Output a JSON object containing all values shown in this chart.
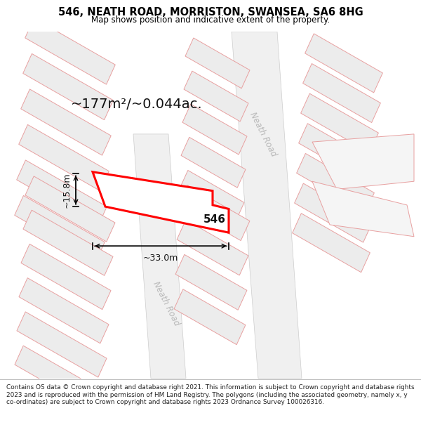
{
  "title": "546, NEATH ROAD, MORRISTON, SWANSEA, SA6 8HG",
  "subtitle": "Map shows position and indicative extent of the property.",
  "footer_line1": "Contains OS data © Crown copyright and database right 2021. This information is subject to Crown copyright and database rights 2023 and is reproduced with the permission of",
  "footer_line2": "HM Land Registry. The polygons (including the associated geometry, namely x, y co-ordinates) are subject to Crown copyright and database rights 2023 Ordnance Survey 100026316.",
  "area_label": "~177m²/~0.044ac.",
  "width_label": "~33.0m",
  "height_label": "~15.8m",
  "number_label": "546",
  "map_bg": "#f7f7f7",
  "road_bg": "#f0f0f0",
  "road_line_color": "#cccccc",
  "plot_line_color": "#ff0000",
  "plot_fill_color": "#ffffff",
  "parcel_stroke": "#e8a0a0",
  "parcel_fill": "#eeeeee",
  "parcel_fill_light": "#f5f5f5",
  "title_color": "#000000",
  "road_label_color": "#b0b0b0",
  "annotation_color": "#111111"
}
